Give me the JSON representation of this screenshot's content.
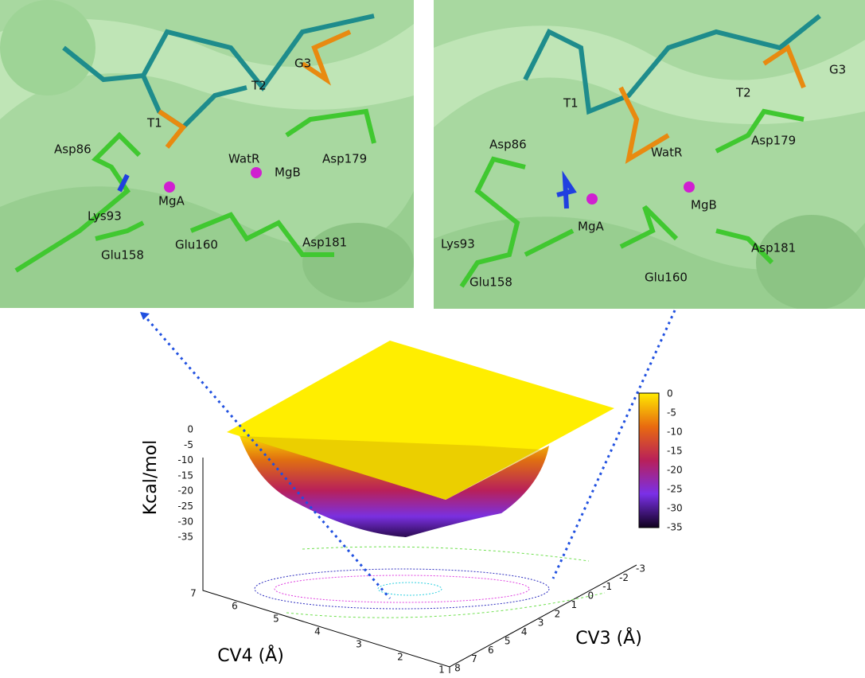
{
  "left_panel": {
    "labels": [
      "T1",
      "T2",
      "G3",
      "Asp86",
      "WatR",
      "MgB",
      "Asp179",
      "MgA",
      "Lys93",
      "Glu158",
      "Glu160",
      "Asp181"
    ]
  },
  "right_panel": {
    "labels": [
      "T1",
      "T2",
      "G3",
      "Asp86",
      "WatR",
      "Asp179",
      "MgA",
      "MgB",
      "Lys93",
      "Glu158",
      "Glu160",
      "Asp181"
    ]
  },
  "plot": {
    "z_label": "Kcal/mol",
    "z_ticks": [
      "0",
      "-5",
      "-10",
      "-15",
      "-20",
      "-25",
      "-30",
      "-35"
    ],
    "colorbar_ticks": [
      "0",
      "-5",
      "-10",
      "-15",
      "-20",
      "-25",
      "-30",
      "-35"
    ],
    "x_label": "CV4 (Å)",
    "x_ticks": [
      "7",
      "6",
      "5",
      "4",
      "3",
      "2",
      "1"
    ],
    "y_label": "CV3 (Å)",
    "y_ticks": [
      "8",
      "7",
      "6",
      "5",
      "4",
      "3",
      "2",
      "1",
      "0",
      "-1",
      "-2",
      "-3"
    ]
  }
}
